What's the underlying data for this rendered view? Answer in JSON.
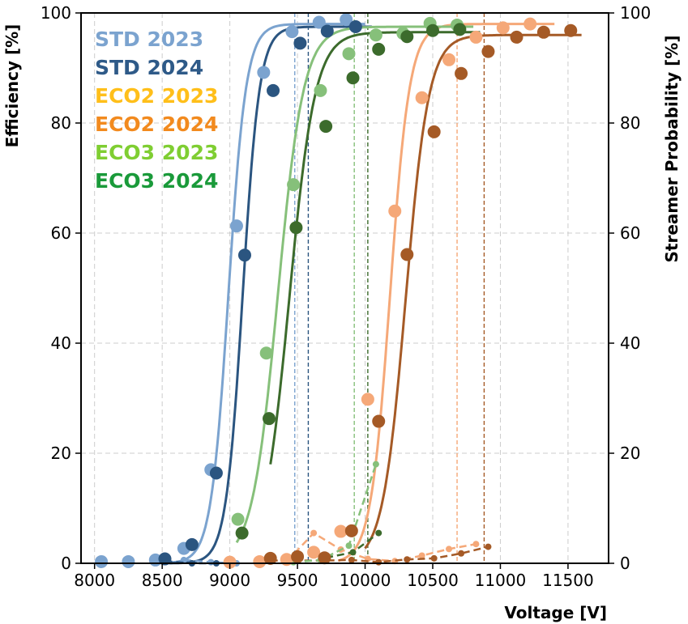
{
  "chart_data": {
    "type": "scatter",
    "xlabel": "Voltage [V]",
    "ylabel": "Efficiency [%]",
    "y2label": "Streamer Probability [%]",
    "xlim": [
      7900,
      11800
    ],
    "ylim": [
      0,
      100
    ],
    "y2lim": [
      0,
      100
    ],
    "xticks": [
      8000,
      8500,
      9000,
      9500,
      10000,
      10500,
      11000,
      11500
    ],
    "yticks": [
      0,
      20,
      40,
      60,
      80,
      100
    ],
    "grid": true,
    "legend_position": "top-left",
    "series": [
      {
        "name": "STD 2023",
        "legend_color": "#7ba3cf",
        "marker_color": "#7ba3cf",
        "line_color": "#7ba3cf",
        "efficiency_points": [
          [
            8050,
            0.3
          ],
          [
            8250,
            0.3
          ],
          [
            8450,
            0.6
          ],
          [
            8660,
            2.7
          ],
          [
            8860,
            17.0
          ],
          [
            9050,
            61.3
          ],
          [
            9250,
            89.2
          ],
          [
            9460,
            96.6
          ],
          [
            9660,
            98.3
          ],
          [
            9860,
            98.8
          ]
        ],
        "fit_curve": {
          "x_range": [
            8450,
            10000
          ],
          "plateau": 98,
          "midpoint": 8990,
          "scale": 65
        },
        "streamer_points": [
          [
            8660,
            0.6
          ],
          [
            8860,
            0.2
          ],
          [
            9050,
            0.0
          ]
        ],
        "wp_line": 9480
      },
      {
        "name": "STD 2024",
        "legend_color": "#2e5a88",
        "marker_color": "#2b5580",
        "line_color": "#2b5580",
        "efficiency_points": [
          [
            8520,
            0.8
          ],
          [
            8720,
            3.4
          ],
          [
            8900,
            16.4
          ],
          [
            9110,
            56.0
          ],
          [
            9320,
            85.9
          ],
          [
            9520,
            94.5
          ],
          [
            9720,
            96.7
          ],
          [
            9930,
            97.5
          ]
        ],
        "fit_curve": {
          "x_range": [
            8550,
            10050
          ],
          "plateau": 97.5,
          "midpoint": 9095,
          "scale": 62
        },
        "streamer_points": [
          [
            8520,
            0.4
          ],
          [
            8720,
            0.0
          ],
          [
            8900,
            0.0
          ]
        ],
        "wp_line": 9580
      },
      {
        "name": "ECO2 2023",
        "legend_color": "#ffbf1a",
        "marker_color": "#f5a878",
        "line_color": "#f5a878",
        "efficiency_points": [
          [
            9000,
            0.2
          ],
          [
            9220,
            0.3
          ],
          [
            9420,
            0.7
          ],
          [
            9620,
            2.0
          ],
          [
            9820,
            5.8
          ],
          [
            10020,
            29.8
          ],
          [
            10220,
            64.0
          ],
          [
            10420,
            84.6
          ],
          [
            10620,
            91.5
          ],
          [
            10820,
            95.6
          ],
          [
            11020,
            97.3
          ],
          [
            11220,
            98.0
          ]
        ],
        "fit_curve": {
          "x_range": [
            9800,
            11400
          ],
          "plateau": 98,
          "midpoint": 10185,
          "scale": 72
        },
        "streamer_points": [
          [
            9420,
            0.3
          ],
          [
            9620,
            5.5
          ],
          [
            9820,
            2.5
          ],
          [
            10020,
            0.8
          ],
          [
            10220,
            0.4
          ],
          [
            10420,
            1.4
          ],
          [
            10620,
            2.6
          ],
          [
            10820,
            3.5
          ]
        ],
        "wp_line": 10680
      },
      {
        "name": "ECO2 2024",
        "legend_color": "#f28a1e",
        "marker_color": "#a55a26",
        "line_color": "#a55a26",
        "efficiency_points": [
          [
            9300,
            0.9
          ],
          [
            9500,
            1.2
          ],
          [
            9700,
            1.0
          ],
          [
            9900,
            5.9
          ],
          [
            10100,
            25.8
          ],
          [
            10310,
            56.1
          ],
          [
            10510,
            78.4
          ],
          [
            10710,
            89.0
          ],
          [
            10910,
            93.0
          ],
          [
            11120,
            95.6
          ],
          [
            11320,
            96.5
          ],
          [
            11520,
            96.8
          ]
        ],
        "fit_curve": {
          "x_range": [
            10000,
            11600
          ],
          "plateau": 96,
          "midpoint": 10300,
          "scale": 85
        },
        "streamer_points": [
          [
            9300,
            0.5
          ],
          [
            9500,
            0.5
          ],
          [
            9700,
            0.5
          ],
          [
            9900,
            0.6
          ],
          [
            10100,
            0.2
          ],
          [
            10310,
            0.7
          ],
          [
            10510,
            0.9
          ],
          [
            10710,
            1.8
          ],
          [
            10910,
            3.0
          ]
        ],
        "wp_line": 10880
      },
      {
        "name": "ECO3 2023",
        "legend_color": "#7fce32",
        "marker_color": "#86c07a",
        "line_color": "#86c07a",
        "efficiency_points": [
          [
            9060,
            8.0
          ],
          [
            9270,
            38.2
          ],
          [
            9470,
            68.8
          ],
          [
            9670,
            85.9
          ],
          [
            9880,
            92.6
          ],
          [
            10080,
            96.0
          ],
          [
            10280,
            96.3
          ],
          [
            10480,
            98.1
          ],
          [
            10680,
            97.8
          ]
        ],
        "fit_curve": {
          "x_range": [
            9050,
            10800
          ],
          "plateau": 97.5,
          "midpoint": 9355,
          "scale": 95
        },
        "streamer_points": [
          [
            9470,
            0.2
          ],
          [
            9670,
            0.6
          ],
          [
            9880,
            3.2
          ],
          [
            10080,
            18.0
          ]
        ],
        "wp_line": 9920
      },
      {
        "name": "ECO3 2024",
        "legend_color": "#1a9a3a",
        "marker_color": "#3c6b2c",
        "line_color": "#3c6b2c",
        "efficiency_points": [
          [
            9090,
            5.5
          ],
          [
            9290,
            26.3
          ],
          [
            9490,
            61.0
          ],
          [
            9710,
            79.4
          ],
          [
            9910,
            88.2
          ],
          [
            10100,
            93.4
          ],
          [
            10310,
            95.7
          ],
          [
            10500,
            96.8
          ],
          [
            10700,
            97.0
          ]
        ],
        "fit_curve": {
          "x_range": [
            9300,
            10850
          ],
          "plateau": 96.5,
          "midpoint": 9440,
          "scale": 95
        },
        "streamer_points": [
          [
            9710,
            1.0
          ],
          [
            9910,
            2.0
          ],
          [
            10100,
            5.5
          ]
        ],
        "wp_line": 10020
      }
    ]
  }
}
